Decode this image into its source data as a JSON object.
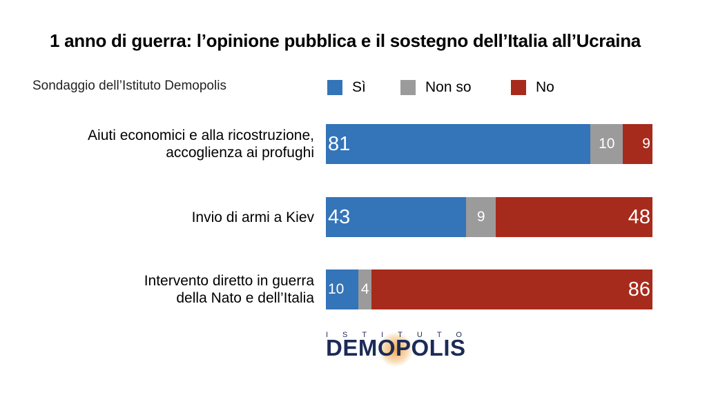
{
  "chart_data": {
    "type": "stacked-bar-horizontal",
    "title": "1 anno di guerra: l’opinione pubblica e il sostegno dell’Italia all’Ucraina",
    "subtitle": "Sondaggio dell’Istituto Demopolis",
    "categories": [
      "Aiuti economici e alla ricostruzione,\naccoglienza ai profughi",
      "Invio di armi a Kiev",
      "Intervento diretto in guerra\ndella Nato e dell’Italia"
    ],
    "series": [
      {
        "name": "Sì",
        "color": "#3474b8",
        "values": [
          81,
          43,
          10
        ]
      },
      {
        "name": "Non so",
        "color": "#9b9b9b",
        "values": [
          10,
          9,
          4
        ]
      },
      {
        "name": "No",
        "color": "#a72b1c",
        "values": [
          9,
          48,
          86
        ]
      }
    ],
    "xlim": [
      0,
      100
    ],
    "logo": {
      "top": "ISTITUTO",
      "name": "DEMOPOLIS"
    }
  }
}
